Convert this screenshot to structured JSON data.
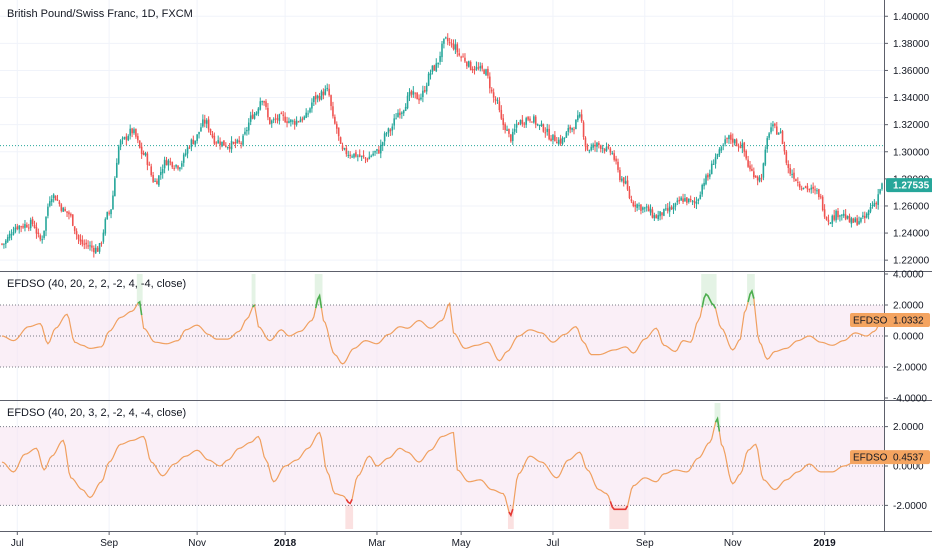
{
  "chart_data": [
    {
      "type": "candlestick",
      "title": "British Pound/Swiss Franc, 1D, FXCM",
      "y_ticks": [
        "1.40000",
        "1.38000",
        "1.36000",
        "1.34000",
        "1.32000",
        "1.30000",
        "1.28000",
        "1.26000",
        "1.24000",
        "1.22000"
      ],
      "y_tick_values": [
        1.4,
        1.38,
        1.36,
        1.34,
        1.32,
        1.3,
        1.28,
        1.26,
        1.24,
        1.22
      ],
      "ylim": [
        1.212,
        1.412
      ],
      "last_price": 1.27535,
      "last_price_label": "1.27535",
      "reference_line": 1.3045,
      "colors": {
        "up": "#26a69a",
        "down": "#ef5350",
        "last": "#26a69a",
        "reference": "#26a69a"
      },
      "anchor_closes": [
        [
          0,
          1.232
        ],
        [
          8,
          1.245
        ],
        [
          16,
          1.247
        ],
        [
          20,
          1.235
        ],
        [
          26,
          1.268
        ],
        [
          34,
          1.255
        ],
        [
          42,
          1.232
        ],
        [
          50,
          1.228
        ],
        [
          56,
          1.255
        ],
        [
          62,
          1.307
        ],
        [
          68,
          1.315
        ],
        [
          74,
          1.298
        ],
        [
          80,
          1.278
        ],
        [
          86,
          1.293
        ],
        [
          92,
          1.29
        ],
        [
          100,
          1.308
        ],
        [
          106,
          1.322
        ],
        [
          112,
          1.308
        ],
        [
          118,
          1.305
        ],
        [
          124,
          1.306
        ],
        [
          132,
          1.328
        ],
        [
          136,
          1.34
        ],
        [
          140,
          1.322
        ],
        [
          146,
          1.325
        ],
        [
          152,
          1.322
        ],
        [
          158,
          1.325
        ],
        [
          164,
          1.34
        ],
        [
          170,
          1.345
        ],
        [
          174,
          1.32
        ],
        [
          178,
          1.3
        ],
        [
          184,
          1.298
        ],
        [
          190,
          1.295
        ],
        [
          196,
          1.3
        ],
        [
          202,
          1.315
        ],
        [
          208,
          1.33
        ],
        [
          214,
          1.342
        ],
        [
          218,
          1.34
        ],
        [
          226,
          1.362
        ],
        [
          232,
          1.382
        ],
        [
          236,
          1.378
        ],
        [
          240,
          1.37
        ],
        [
          246,
          1.362
        ],
        [
          252,
          1.36
        ],
        [
          258,
          1.338
        ],
        [
          262,
          1.32
        ],
        [
          266,
          1.31
        ],
        [
          270,
          1.322
        ],
        [
          276,
          1.325
        ],
        [
          282,
          1.318
        ],
        [
          288,
          1.31
        ],
        [
          292,
          1.308
        ],
        [
          298,
          1.318
        ],
        [
          302,
          1.325
        ],
        [
          306,
          1.302
        ],
        [
          312,
          1.305
        ],
        [
          318,
          1.3
        ],
        [
          324,
          1.28
        ],
        [
          330,
          1.262
        ],
        [
          336,
          1.258
        ],
        [
          342,
          1.252
        ],
        [
          346,
          1.255
        ],
        [
          350,
          1.258
        ],
        [
          356,
          1.265
        ],
        [
          362,
          1.262
        ],
        [
          368,
          1.28
        ],
        [
          374,
          1.298
        ],
        [
          380,
          1.31
        ],
        [
          386,
          1.305
        ],
        [
          392,
          1.285
        ],
        [
          396,
          1.28
        ],
        [
          402,
          1.318
        ],
        [
          406,
          1.315
        ],
        [
          412,
          1.285
        ],
        [
          418,
          1.275
        ],
        [
          426,
          1.27
        ],
        [
          432,
          1.25
        ],
        [
          438,
          1.255
        ],
        [
          444,
          1.248
        ],
        [
          450,
          1.25
        ],
        [
          456,
          1.262
        ],
        [
          460,
          1.275
        ]
      ]
    },
    {
      "type": "line",
      "title": "EFDSO (40, 20, 2, 2, -2, 4, -4, close)",
      "legend_label": "EFDSO",
      "last_value": 1.0332,
      "last_value_label": "1.0332",
      "y_ticks": [
        "4.0000",
        "2.0000",
        "0.0000",
        "-2.0000",
        "-4.0000"
      ],
      "y_tick_values": [
        4,
        2,
        0,
        -2,
        -4
      ],
      "ylim": [
        -4,
        4
      ],
      "levels": [
        2,
        0,
        -2
      ],
      "colors": {
        "line": "#f0a060",
        "up": "#4caf50",
        "down": "#e53935",
        "band": "#f7e4f2",
        "badge": "#f4a460"
      },
      "anchors": [
        [
          0,
          0.0
        ],
        [
          6,
          -0.3
        ],
        [
          14,
          0.6
        ],
        [
          20,
          0.8
        ],
        [
          24,
          -0.5
        ],
        [
          28,
          0.5
        ],
        [
          34,
          1.4
        ],
        [
          38,
          -0.4
        ],
        [
          42,
          -0.6
        ],
        [
          46,
          -0.8
        ],
        [
          52,
          -0.7
        ],
        [
          56,
          0.3
        ],
        [
          62,
          1.2
        ],
        [
          68,
          1.6
        ],
        [
          72,
          2.2
        ],
        [
          74,
          0.5
        ],
        [
          80,
          -0.4
        ],
        [
          86,
          -0.5
        ],
        [
          92,
          -0.3
        ],
        [
          96,
          0.4
        ],
        [
          102,
          0.7
        ],
        [
          108,
          0.1
        ],
        [
          112,
          -0.2
        ],
        [
          118,
          -0.2
        ],
        [
          124,
          0.3
        ],
        [
          128,
          1.1
        ],
        [
          132,
          2.0
        ],
        [
          134,
          0.6
        ],
        [
          140,
          -0.3
        ],
        [
          146,
          0.4
        ],
        [
          150,
          0.0
        ],
        [
          156,
          0.3
        ],
        [
          162,
          1.0
        ],
        [
          166,
          2.6
        ],
        [
          168,
          1.0
        ],
        [
          174,
          -1.2
        ],
        [
          178,
          -1.8
        ],
        [
          184,
          -0.8
        ],
        [
          190,
          -0.3
        ],
        [
          196,
          -0.5
        ],
        [
          202,
          0.1
        ],
        [
          208,
          0.6
        ],
        [
          212,
          0.5
        ],
        [
          218,
          1.0
        ],
        [
          224,
          0.5
        ],
        [
          230,
          1.0
        ],
        [
          234,
          2.1
        ],
        [
          236,
          0.2
        ],
        [
          242,
          -0.8
        ],
        [
          248,
          -0.6
        ],
        [
          254,
          -0.4
        ],
        [
          260,
          -1.6
        ],
        [
          264,
          -1.0
        ],
        [
          270,
          0.0
        ],
        [
          276,
          0.4
        ],
        [
          282,
          0.2
        ],
        [
          288,
          -0.4
        ],
        [
          294,
          0.1
        ],
        [
          300,
          0.6
        ],
        [
          304,
          -0.4
        ],
        [
          308,
          -1.2
        ],
        [
          312,
          -1.2
        ],
        [
          320,
          -0.9
        ],
        [
          326,
          -0.7
        ],
        [
          330,
          -1.1
        ],
        [
          336,
          -0.2
        ],
        [
          342,
          0.5
        ],
        [
          346,
          -0.6
        ],
        [
          352,
          -1.0
        ],
        [
          356,
          -0.3
        ],
        [
          360,
          -0.4
        ],
        [
          364,
          1.0
        ],
        [
          368,
          2.7
        ],
        [
          372,
          2.0
        ],
        [
          376,
          0.5
        ],
        [
          382,
          -0.9
        ],
        [
          386,
          -0.2
        ],
        [
          388,
          1.5
        ],
        [
          392,
          2.9
        ],
        [
          396,
          -0.4
        ],
        [
          400,
          -1.5
        ],
        [
          404,
          -1.0
        ],
        [
          410,
          -0.8
        ],
        [
          416,
          -0.3
        ],
        [
          422,
          0.0
        ],
        [
          428,
          -0.4
        ],
        [
          434,
          -0.6
        ],
        [
          440,
          -0.3
        ],
        [
          446,
          0.2
        ],
        [
          452,
          0.0
        ],
        [
          456,
          0.3
        ],
        [
          460,
          1.03
        ]
      ],
      "highlights": [
        {
          "from": 71,
          "to": 73,
          "direction": "up"
        },
        {
          "from": 131,
          "to": 132,
          "direction": "up"
        },
        {
          "from": 164,
          "to": 167,
          "direction": "up"
        },
        {
          "from": 366,
          "to": 373,
          "direction": "up"
        },
        {
          "from": 390,
          "to": 393,
          "direction": "up"
        }
      ]
    },
    {
      "type": "line",
      "title": "EFDSO (40, 20, 3, 2, -2, 4, -4, close)",
      "legend_label": "EFDSO",
      "last_value": 0.4537,
      "last_value_label": "0.4537",
      "y_ticks": [
        "2.0000",
        "0.0000",
        "-2.0000"
      ],
      "y_tick_values": [
        2,
        0,
        -2
      ],
      "ylim": [
        -3.2,
        3.2
      ],
      "levels": [
        2,
        0,
        -2
      ],
      "colors": {
        "line": "#f0a060",
        "up": "#4caf50",
        "down": "#e53935",
        "band": "#f7e4f2",
        "badge": "#f4a460"
      },
      "anchors": [
        [
          0,
          0.2
        ],
        [
          6,
          -0.3
        ],
        [
          12,
          0.6
        ],
        [
          18,
          0.9
        ],
        [
          22,
          -0.2
        ],
        [
          26,
          0.5
        ],
        [
          32,
          1.3
        ],
        [
          36,
          -0.6
        ],
        [
          42,
          -1.2
        ],
        [
          46,
          -1.6
        ],
        [
          52,
          -0.8
        ],
        [
          56,
          0.2
        ],
        [
          62,
          1.1
        ],
        [
          68,
          1.3
        ],
        [
          74,
          1.5
        ],
        [
          78,
          0.2
        ],
        [
          84,
          -0.5
        ],
        [
          90,
          0.1
        ],
        [
          96,
          0.5
        ],
        [
          102,
          0.8
        ],
        [
          108,
          0.3
        ],
        [
          114,
          0.0
        ],
        [
          118,
          0.3
        ],
        [
          124,
          0.9
        ],
        [
          130,
          1.2
        ],
        [
          134,
          1.5
        ],
        [
          138,
          0.3
        ],
        [
          142,
          -0.8
        ],
        [
          148,
          0.0
        ],
        [
          154,
          0.3
        ],
        [
          160,
          0.9
        ],
        [
          166,
          1.7
        ],
        [
          170,
          -0.3
        ],
        [
          174,
          -1.4
        ],
        [
          178,
          -1.5
        ],
        [
          182,
          -1.9
        ],
        [
          186,
          -0.5
        ],
        [
          192,
          0.5
        ],
        [
          196,
          0.0
        ],
        [
          202,
          0.4
        ],
        [
          208,
          0.9
        ],
        [
          212,
          0.7
        ],
        [
          218,
          0.2
        ],
        [
          224,
          0.8
        ],
        [
          230,
          1.5
        ],
        [
          236,
          1.7
        ],
        [
          238,
          -0.2
        ],
        [
          244,
          -0.8
        ],
        [
          250,
          -0.7
        ],
        [
          256,
          -1.2
        ],
        [
          262,
          -1.4
        ],
        [
          266,
          -2.5
        ],
        [
          270,
          -0.4
        ],
        [
          276,
          0.5
        ],
        [
          282,
          0.2
        ],
        [
          290,
          -0.6
        ],
        [
          296,
          0.3
        ],
        [
          302,
          0.7
        ],
        [
          306,
          -0.2
        ],
        [
          312,
          -1.2
        ],
        [
          316,
          -1.4
        ],
        [
          320,
          -2.2
        ],
        [
          326,
          -2.2
        ],
        [
          330,
          -1.0
        ],
        [
          336,
          -0.6
        ],
        [
          342,
          -0.8
        ],
        [
          346,
          -0.4
        ],
        [
          352,
          -0.2
        ],
        [
          358,
          -0.3
        ],
        [
          364,
          0.4
        ],
        [
          370,
          1.2
        ],
        [
          374,
          2.4
        ],
        [
          376,
          1.1
        ],
        [
          382,
          -0.9
        ],
        [
          386,
          -0.4
        ],
        [
          390,
          0.8
        ],
        [
          394,
          1.1
        ],
        [
          398,
          -0.7
        ],
        [
          404,
          -1.2
        ],
        [
          410,
          -0.7
        ],
        [
          416,
          -0.3
        ],
        [
          422,
          0.1
        ],
        [
          428,
          -0.3
        ],
        [
          434,
          -0.3
        ],
        [
          440,
          0.0
        ],
        [
          446,
          0.2
        ],
        [
          452,
          0.2
        ],
        [
          456,
          0.3
        ],
        [
          460,
          0.45
        ]
      ],
      "highlights": [
        {
          "from": 180,
          "to": 183,
          "direction": "down"
        },
        {
          "from": 265,
          "to": 267,
          "direction": "down"
        },
        {
          "from": 318,
          "to": 327,
          "direction": "down"
        },
        {
          "from": 373,
          "to": 375,
          "direction": "up"
        }
      ]
    }
  ],
  "x_axis": {
    "labels": [
      {
        "text": "Jul",
        "index": 8
      },
      {
        "text": "Sep",
        "index": 56
      },
      {
        "text": "Nov",
        "index": 102
      },
      {
        "text": "2018",
        "index": 148,
        "bold": true
      },
      {
        "text": "Mar",
        "index": 196
      },
      {
        "text": "May",
        "index": 240
      },
      {
        "text": "Jul",
        "index": 288
      },
      {
        "text": "Sep",
        "index": 336
      },
      {
        "text": "Nov",
        "index": 382
      },
      {
        "text": "2019",
        "index": 430,
        "bold": true
      }
    ]
  }
}
